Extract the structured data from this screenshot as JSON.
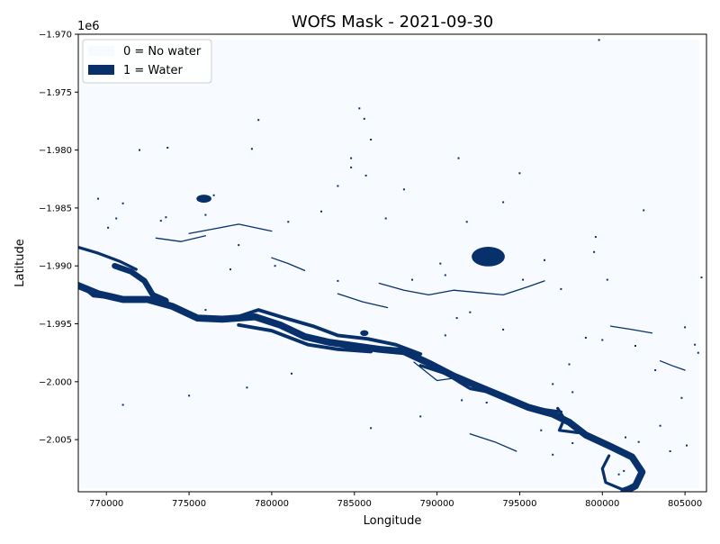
{
  "chart_data": {
    "type": "heatmap",
    "title": "WOfS Mask - 2021-09-30",
    "xlabel": "Longitude",
    "ylabel": "Latitude",
    "y_offset_label": "1e6",
    "xlim": [
      768300,
      806300
    ],
    "ylim": [
      -2009.5,
      -1970.0
    ],
    "x_ticks": [
      770000,
      775000,
      780000,
      785000,
      790000,
      795000,
      800000,
      805000
    ],
    "x_tick_labels": [
      "770000",
      "775000",
      "780000",
      "785000",
      "790000",
      "795000",
      "800000",
      "805000"
    ],
    "y_ticks": [
      -1970,
      -1975,
      -1980,
      -1985,
      -1990,
      -1995,
      -2000,
      -2005
    ],
    "y_tick_labels": [
      "−1.970",
      "−1.975",
      "−1.980",
      "−1.985",
      "−1.990",
      "−1.995",
      "−2.000",
      "−2.005"
    ],
    "grid": false,
    "legend_position": "upper-left",
    "legend": [
      {
        "label": "0 = No water",
        "color": "#f7fbff"
      },
      {
        "label": "1 = Water",
        "color": "#08306b"
      }
    ],
    "colors": {
      "no_water": "#f7fbff",
      "water": "#08306b"
    },
    "water_features": [
      {
        "name": "main-river",
        "width": 0.6,
        "points": [
          [
            768300,
            -1991.7
          ],
          [
            769500,
            -1992.4
          ],
          [
            771000,
            -1992.9
          ],
          [
            772500,
            -1992.9
          ],
          [
            774000,
            -1993.5
          ],
          [
            775500,
            -1994.5
          ],
          [
            777000,
            -1994.6
          ],
          [
            779000,
            -1994.4
          ],
          [
            780500,
            -1995.1
          ],
          [
            782000,
            -1996.1
          ],
          [
            783500,
            -1996.6
          ],
          [
            785000,
            -1996.9
          ],
          [
            786500,
            -1997.2
          ],
          [
            788000,
            -1997.4
          ],
          [
            789500,
            -1998.4
          ],
          [
            791000,
            -1999.5
          ],
          [
            792500,
            -2000.4
          ],
          [
            794000,
            -2001.3
          ],
          [
            795500,
            -2002.2
          ],
          [
            797000,
            -2002.8
          ],
          [
            798000,
            -2003.5
          ],
          [
            799000,
            -2004.6
          ],
          [
            800500,
            -2005.6
          ],
          [
            801800,
            -2006.5
          ],
          [
            802400,
            -2007.8
          ],
          [
            802000,
            -2009.0
          ],
          [
            801300,
            -2009.5
          ]
        ]
      },
      {
        "name": "north-channel",
        "width": 0.5,
        "points": [
          [
            770500,
            -1990.0
          ],
          [
            771500,
            -1990.5
          ],
          [
            772300,
            -1991.3
          ],
          [
            772800,
            -1992.5
          ],
          [
            773600,
            -1993.0
          ]
        ]
      },
      {
        "name": "upper-braid",
        "width": 0.3,
        "points": [
          [
            777500,
            -1994.6
          ],
          [
            779200,
            -1993.8
          ],
          [
            780800,
            -1994.5
          ],
          [
            782500,
            -1995.2
          ],
          [
            784000,
            -1996.0
          ],
          [
            785800,
            -1996.3
          ],
          [
            787500,
            -1996.8
          ],
          [
            789000,
            -1997.6
          ]
        ]
      },
      {
        "name": "lower-braid",
        "width": 0.3,
        "points": [
          [
            778000,
            -1995.1
          ],
          [
            780000,
            -1995.6
          ],
          [
            782200,
            -1996.8
          ],
          [
            784000,
            -1997.2
          ],
          [
            786000,
            -1997.4
          ]
        ]
      },
      {
        "name": "south-braid",
        "width": 0.25,
        "points": [
          [
            789000,
            -1998.6
          ],
          [
            790500,
            -1999.3
          ],
          [
            792000,
            -2000.6
          ],
          [
            793500,
            -2001.0
          ],
          [
            795200,
            -2002.0
          ],
          [
            796500,
            -2002.4
          ],
          [
            797500,
            -2002.6
          ]
        ]
      },
      {
        "name": "oxbow-east",
        "width": 0.25,
        "points": [
          [
            797300,
            -2002.3
          ],
          [
            797700,
            -2003.2
          ],
          [
            797400,
            -2004.2
          ],
          [
            798500,
            -2004.4
          ]
        ]
      },
      {
        "name": "outer-loop",
        "width": 0.25,
        "points": [
          [
            800400,
            -2006.4
          ],
          [
            800000,
            -2007.5
          ],
          [
            800200,
            -2008.7
          ],
          [
            801200,
            -2009.3
          ],
          [
            802200,
            -2008.8
          ]
        ]
      },
      {
        "name": "west-tributary",
        "width": 0.25,
        "points": [
          [
            768300,
            -1988.4
          ],
          [
            769500,
            -1988.9
          ],
          [
            770800,
            -1989.6
          ],
          [
            771800,
            -1990.3
          ]
        ]
      },
      {
        "name": "west-oxbow",
        "width": 0.25,
        "points": [
          [
            768300,
            -1991.5
          ],
          [
            769200,
            -1992.6
          ],
          [
            770500,
            -1992.8
          ]
        ]
      },
      {
        "name": "central-stream",
        "width": 0.1,
        "points": [
          [
            786500,
            -1991.5
          ],
          [
            788000,
            -1992.1
          ],
          [
            789500,
            -1992.5
          ],
          [
            791000,
            -1992.1
          ],
          [
            792500,
            -1992.3
          ],
          [
            794000,
            -1992.5
          ],
          [
            795500,
            -1991.8
          ],
          [
            796500,
            -1991.3
          ]
        ]
      },
      {
        "name": "mid-tributary",
        "width": 0.1,
        "points": [
          [
            775000,
            -1987.2
          ],
          [
            776500,
            -1986.8
          ],
          [
            778000,
            -1986.4
          ],
          [
            779000,
            -1986.7
          ],
          [
            780000,
            -1987.0
          ]
        ]
      },
      {
        "name": "north-creek",
        "width": 0.1,
        "points": [
          [
            780000,
            -1989.3
          ],
          [
            781000,
            -1989.8
          ],
          [
            782000,
            -1990.4
          ]
        ]
      },
      {
        "name": "small-stream-a",
        "width": 0.1,
        "points": [
          [
            773000,
            -1987.6
          ],
          [
            774500,
            -1987.9
          ],
          [
            776000,
            -1987.4
          ]
        ]
      },
      {
        "name": "small-stream-b",
        "width": 0.1,
        "points": [
          [
            788600,
            -1998.3
          ],
          [
            790000,
            -1999.9
          ],
          [
            791500,
            -1999.6
          ]
        ]
      },
      {
        "name": "delta-channel",
        "width": 0.1,
        "points": [
          [
            792000,
            -2004.5
          ],
          [
            793500,
            -2005.2
          ],
          [
            794800,
            -2006.0
          ]
        ]
      },
      {
        "name": "ne-stream",
        "width": 0.1,
        "points": [
          [
            800500,
            -1995.2
          ],
          [
            801800,
            -1995.5
          ],
          [
            803000,
            -1995.8
          ]
        ]
      },
      {
        "name": "east-creek",
        "width": 0.1,
        "points": [
          [
            803500,
            -1998.2
          ],
          [
            804200,
            -1998.6
          ],
          [
            805000,
            -1999.0
          ]
        ]
      },
      {
        "name": "mid-bank-channel",
        "width": 0.1,
        "points": [
          [
            784000,
            -1992.4
          ],
          [
            785500,
            -1993.1
          ],
          [
            787000,
            -1993.6
          ]
        ]
      }
    ],
    "water_bodies": [
      {
        "name": "lake-center",
        "x": 793100,
        "y": -1989.2,
        "rx": 1000,
        "ry": 0.85
      },
      {
        "name": "pond-west",
        "x": 775900,
        "y": -1984.2,
        "rx": 450,
        "ry": 0.35
      },
      {
        "name": "pond-sw",
        "x": 785600,
        "y": -1995.8,
        "rx": 250,
        "ry": 0.25
      }
    ],
    "water_specks": [
      [
        799800,
        -1970.5
      ],
      [
        779200,
        -1977.4
      ],
      [
        785300,
        -1976.4
      ],
      [
        784800,
        -1980.7
      ],
      [
        785700,
        -1982.2
      ],
      [
        784800,
        -1981.5
      ],
      [
        784000,
        -1983.1
      ],
      [
        776500,
        -1983.9
      ],
      [
        778000,
        -1988.2
      ],
      [
        769500,
        -1984.2
      ],
      [
        771000,
        -1984.6
      ],
      [
        770600,
        -1985.9
      ],
      [
        770100,
        -1986.7
      ],
      [
        773600,
        -1985.8
      ],
      [
        773300,
        -1986.1
      ],
      [
        776000,
        -1985.6
      ],
      [
        778800,
        -1979.9
      ],
      [
        773700,
        -1979.8
      ],
      [
        788000,
        -1983.4
      ],
      [
        786900,
        -1985.9
      ],
      [
        786000,
        -1979.1
      ],
      [
        785600,
        -1977.3
      ],
      [
        791300,
        -1980.7
      ],
      [
        795000,
        -1982.0
      ],
      [
        799500,
        -1988.8
      ],
      [
        800300,
        -1991.2
      ],
      [
        797500,
        -1992.0
      ],
      [
        799000,
        -1996.2
      ],
      [
        800000,
        -1996.4
      ],
      [
        802000,
        -1996.9
      ],
      [
        805000,
        -1995.3
      ],
      [
        805600,
        -1996.8
      ],
      [
        803200,
        -1999.0
      ],
      [
        804800,
        -2001.4
      ],
      [
        798200,
        -2000.9
      ],
      [
        797000,
        -2000.2
      ],
      [
        798200,
        -2005.3
      ],
      [
        796300,
        -2004.2
      ],
      [
        801400,
        -2004.8
      ],
      [
        802200,
        -2005.2
      ],
      [
        804100,
        -2006.0
      ],
      [
        805100,
        -2005.5
      ],
      [
        797000,
        -2006.3
      ],
      [
        801000,
        -2008.0
      ],
      [
        800100,
        -2008.3
      ],
      [
        801300,
        -2007.7
      ],
      [
        778500,
        -2000.5
      ],
      [
        775000,
        -2001.2
      ],
      [
        771000,
        -2002.0
      ],
      [
        786000,
        -2004.0
      ],
      [
        781200,
        -1999.3
      ],
      [
        792000,
        -1994.0
      ],
      [
        791200,
        -1994.5
      ],
      [
        790500,
        -1996.0
      ],
      [
        794000,
        -1995.5
      ],
      [
        788500,
        -1991.2
      ],
      [
        784000,
        -1991.3
      ],
      [
        780200,
        -1990.0
      ],
      [
        777500,
        -1990.3
      ],
      [
        776000,
        -1993.8
      ],
      [
        791500,
        -2001.6
      ],
      [
        793000,
        -2001.8
      ],
      [
        789000,
        -2003.0
      ],
      [
        795200,
        -1991.2
      ],
      [
        796500,
        -1989.5
      ],
      [
        799600,
        -1987.5
      ],
      [
        772000,
        -1980.0
      ],
      [
        794000,
        -1984.5
      ],
      [
        783000,
        -1985.3
      ],
      [
        781000,
        -1986.2
      ],
      [
        798000,
        -1998.5
      ],
      [
        803500,
        -2003.8
      ],
      [
        806000,
        -1991.0
      ],
      [
        805800,
        -1997.5
      ],
      [
        791800,
        -1986.2
      ],
      [
        790200,
        -1989.8
      ],
      [
        802500,
        -1985.2
      ],
      [
        790500,
        -1990.8
      ]
    ]
  }
}
